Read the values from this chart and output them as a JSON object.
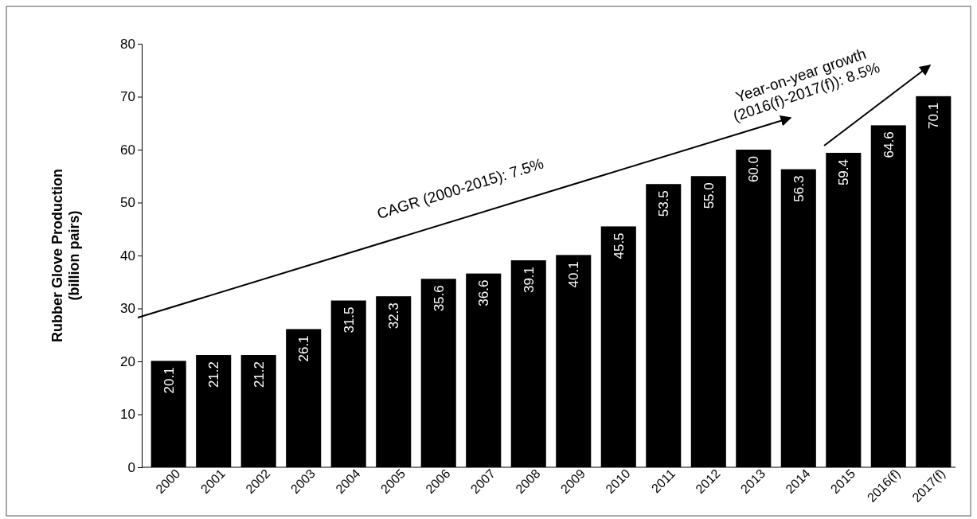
{
  "chart_data": {
    "type": "bar",
    "ylabel": "Rubber Glove Production\n(billion pairs)",
    "categories": [
      "2000",
      "2001",
      "2002",
      "2003",
      "2004",
      "2005",
      "2006",
      "2007",
      "2008",
      "2009",
      "2010",
      "2011",
      "2012",
      "2013",
      "2014",
      "2015",
      "2016(f)",
      "2017(f)"
    ],
    "values": [
      20.1,
      21.2,
      21.2,
      26.1,
      31.5,
      32.3,
      35.6,
      36.6,
      39.1,
      40.1,
      45.5,
      53.5,
      55.0,
      60.0,
      56.3,
      59.4,
      64.6,
      70.1
    ],
    "value_labels": [
      "20.1",
      "21.2",
      "21.2",
      "26.1",
      "31.5",
      "32.3",
      "35.6",
      "36.6",
      "39.1",
      "40.1",
      "45.5",
      "53.5",
      "55.0",
      "60.0",
      "56.3",
      "59.4",
      "64.6",
      "70.1"
    ],
    "color": "#000000",
    "ylim": [
      0,
      80
    ],
    "yticks": [
      0,
      10,
      20,
      30,
      40,
      50,
      60,
      70,
      80
    ],
    "grid": false,
    "annotations": [
      "CAGR (2000-2015): 7.5%",
      "Year-on-year growth\n(2016(f)-2017(f)): 8.5%"
    ]
  }
}
